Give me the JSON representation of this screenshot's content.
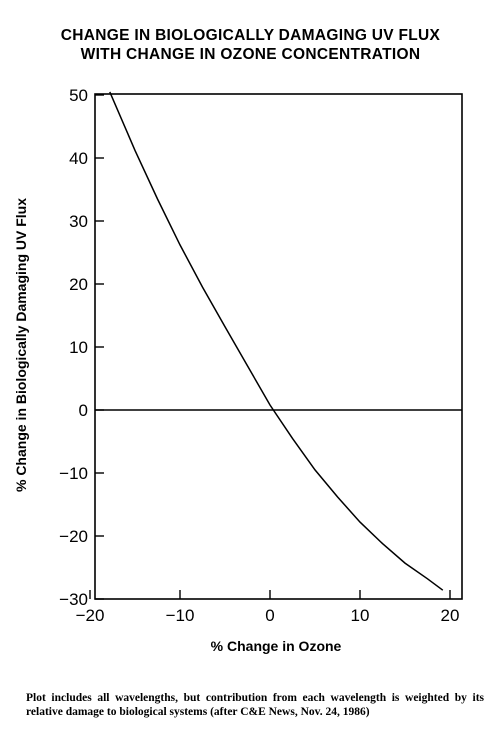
{
  "title_line1": "CHANGE IN BIOLOGICALLY DAMAGING UV FLUX",
  "title_line2": "WITH CHANGE IN OZONE CONCENTRATION",
  "caption": "Plot includes all wavelengths, but contribution from each wavelength is weighted by its relative damage to biological systems (after C&E News, Nov. 24, 1986)",
  "chart_data": {
    "type": "line",
    "xlabel": "% Change in Ozone",
    "ylabel": "% Change in Biologically Damaging UV Flux",
    "xlim": [
      -20,
      20
    ],
    "ylim": [
      -30,
      50
    ],
    "xticks": [
      -20,
      -10,
      0,
      10,
      20
    ],
    "yticks": [
      50,
      40,
      30,
      20,
      10,
      0,
      -10,
      -20,
      -30
    ],
    "xtick_labels": [
      "−20",
      "−10",
      "0",
      "10",
      "20"
    ],
    "ytick_labels": [
      "50",
      "40",
      "30",
      "20",
      "10",
      "0",
      "−10",
      "−20",
      "−30"
    ],
    "grid": false,
    "reference_line_y": 0,
    "series": [
      {
        "x": [
          -17.8,
          -15,
          -12.5,
          -10,
          -7.5,
          -5,
          -2.5,
          0,
          2.5,
          5,
          7.5,
          10,
          12.5,
          15,
          17.5,
          19.2
        ],
        "y": [
          50.5,
          41.2,
          33.5,
          26.2,
          19.5,
          13.2,
          7.0,
          0.8,
          -4.5,
          -9.5,
          -13.8,
          -17.8,
          -21.2,
          -24.3,
          -26.8,
          -28.6
        ]
      }
    ]
  }
}
